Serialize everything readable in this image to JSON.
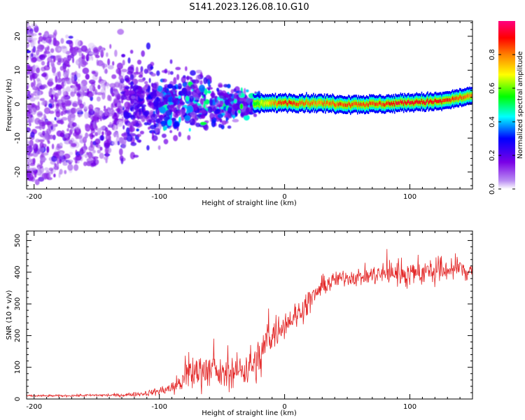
{
  "title": "S141.2023.126.08.10.G10",
  "chart_data": [
    {
      "type": "heatmap",
      "xlabel": "Height of straight line (km)",
      "ylabel": "Frequency (Hz)",
      "xlim": [
        -206,
        150
      ],
      "ylim": [
        -25,
        24.5
      ],
      "xticks": [
        -200,
        -100,
        0,
        100
      ],
      "yticks": [
        -20,
        -10,
        0,
        10,
        20
      ],
      "xtick_labels": [
        "-200",
        "-100",
        "0",
        "100"
      ],
      "ytick_labels": [
        "-20",
        "-10",
        "0",
        "10",
        "20"
      ],
      "colorbar": {
        "label": "Normalized spectral amplitude",
        "range": [
          0,
          1
        ],
        "ticks": [
          0.0,
          0.2,
          0.4,
          0.6,
          0.8
        ],
        "tick_labels": [
          "0.0",
          "0.2",
          "0.4",
          "0.6",
          "0.8"
        ],
        "colormap": [
          "#ffffff",
          "#8a2be2",
          "#0000ff",
          "#00ffff",
          "#00ff00",
          "#ffff00",
          "#ff8000",
          "#ff0000",
          "#ff00a0"
        ]
      },
      "ridge": {
        "x": [
          -25,
          0,
          25,
          50,
          75,
          100,
          125,
          150
        ],
        "frequency": [
          0,
          0.5,
          0.3,
          0,
          0,
          0.5,
          0.8,
          2.5
        ],
        "amplitude": [
          0.5,
          0.85,
          0.75,
          0.8,
          0.8,
          0.9,
          0.85,
          0.75
        ]
      },
      "scatter_region": {
        "x_range": [
          -206,
          -20
        ],
        "center_frequency": 0,
        "spread_hz_at_left": 24,
        "spread_hz_at_right": 3
      },
      "grid": false
    },
    {
      "type": "line",
      "xlabel": "Height of straight line (km)",
      "ylabel": "SNR (10 * v/v)",
      "xlim": [
        -206,
        150
      ],
      "ylim": [
        0,
        530
      ],
      "xticks": [
        -200,
        -100,
        0,
        100
      ],
      "yticks": [
        0,
        100,
        200,
        300,
        400,
        500
      ],
      "xtick_labels": [
        "-200",
        "-100",
        "0",
        "100"
      ],
      "ytick_labels": [
        "0",
        "100",
        "200",
        "300",
        "400",
        "500"
      ],
      "color": "#e32626",
      "series": [
        {
          "x": [
            -206,
            -180,
            -150,
            -130,
            -110,
            -100,
            -90,
            -80,
            -70,
            -60,
            -50,
            -40,
            -30,
            -20,
            -15,
            -10,
            0,
            10,
            20,
            30,
            40,
            50,
            60,
            70,
            80,
            90,
            100,
            110,
            120,
            130,
            140,
            150
          ],
          "values": [
            10,
            10,
            12,
            12,
            18,
            25,
            35,
            60,
            90,
            95,
            75,
            85,
            100,
            120,
            180,
            200,
            240,
            265,
            310,
            355,
            375,
            385,
            385,
            390,
            395,
            400,
            395,
            400,
            400,
            410,
            410,
            405
          ],
          "noise": [
            3,
            3,
            4,
            5,
            8,
            12,
            20,
            40,
            55,
            50,
            40,
            45,
            55,
            65,
            60,
            50,
            40,
            40,
            35,
            30,
            25,
            25,
            25,
            30,
            35,
            40,
            40,
            40,
            40,
            40,
            40,
            40
          ]
        }
      ],
      "grid": false
    }
  ]
}
